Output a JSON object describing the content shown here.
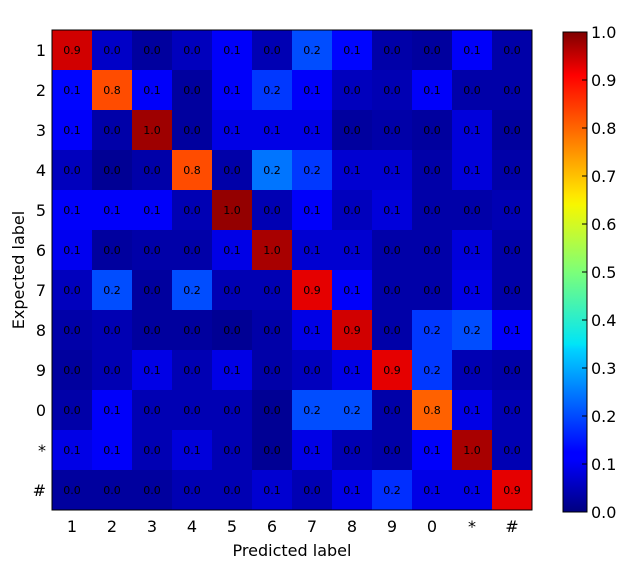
{
  "chart_data": {
    "type": "heatmap",
    "title": "",
    "xlabel": "Predicted label",
    "ylabel": "Expected label",
    "x_categories": [
      "1",
      "2",
      "3",
      "4",
      "5",
      "6",
      "7",
      "8",
      "9",
      "0",
      "*",
      "#"
    ],
    "y_categories": [
      "1",
      "2",
      "3",
      "4",
      "5",
      "6",
      "7",
      "8",
      "9",
      "0",
      "*",
      "#"
    ],
    "colormap": "jet",
    "vmin": 0.0,
    "vmax": 1.0,
    "colorbar_ticks": [
      "0.0",
      "0.1",
      "0.2",
      "0.3",
      "0.4",
      "0.5",
      "0.6",
      "0.7",
      "0.8",
      "0.9",
      "1.0"
    ],
    "values": [
      [
        0.9,
        0.0,
        0.0,
        0.0,
        0.1,
        0.0,
        0.2,
        0.1,
        0.0,
        0.0,
        0.1,
        0.0
      ],
      [
        0.1,
        0.8,
        0.1,
        0.0,
        0.1,
        0.2,
        0.1,
        0.0,
        0.0,
        0.1,
        0.0,
        0.0
      ],
      [
        0.1,
        0.0,
        1.0,
        0.0,
        0.1,
        0.1,
        0.1,
        0.0,
        0.0,
        0.0,
        0.1,
        0.0
      ],
      [
        0.0,
        0.0,
        0.0,
        0.8,
        0.0,
        0.2,
        0.2,
        0.1,
        0.1,
        0.0,
        0.1,
        0.0
      ],
      [
        0.1,
        0.1,
        0.1,
        0.0,
        1.0,
        0.0,
        0.1,
        0.0,
        0.1,
        0.0,
        0.0,
        0.0
      ],
      [
        0.1,
        0.0,
        0.0,
        0.0,
        0.1,
        1.0,
        0.1,
        0.1,
        0.0,
        0.0,
        0.1,
        0.0
      ],
      [
        0.0,
        0.2,
        0.0,
        0.2,
        0.0,
        0.0,
        0.9,
        0.1,
        0.0,
        0.0,
        0.1,
        0.0
      ],
      [
        0.0,
        0.0,
        0.0,
        0.0,
        0.0,
        0.0,
        0.1,
        0.9,
        0.0,
        0.2,
        0.2,
        0.1
      ],
      [
        0.0,
        0.0,
        0.1,
        0.0,
        0.1,
        0.0,
        0.0,
        0.1,
        0.9,
        0.2,
        0.0,
        0.0
      ],
      [
        0.0,
        0.1,
        0.0,
        0.0,
        0.0,
        0.0,
        0.2,
        0.2,
        0.0,
        0.8,
        0.1,
        0.0
      ],
      [
        0.1,
        0.1,
        0.0,
        0.1,
        0.0,
        0.0,
        0.1,
        0.0,
        0.0,
        0.1,
        1.0,
        0.0
      ],
      [
        0.0,
        0.0,
        0.0,
        0.0,
        0.0,
        0.1,
        0.0,
        0.1,
        0.2,
        0.1,
        0.1,
        0.9
      ]
    ],
    "shading": [
      [
        0.92,
        0.07,
        0.03,
        0.06,
        0.12,
        0.05,
        0.2,
        0.13,
        0.04,
        0.03,
        0.12,
        0.04
      ],
      [
        0.13,
        0.8,
        0.12,
        0.03,
        0.12,
        0.18,
        0.12,
        0.06,
        0.05,
        0.12,
        0.04,
        0.04
      ],
      [
        0.12,
        0.04,
        0.97,
        0.03,
        0.1,
        0.1,
        0.1,
        0.03,
        0.04,
        0.03,
        0.09,
        0.03
      ],
      [
        0.06,
        0.02,
        0.04,
        0.8,
        0.04,
        0.24,
        0.18,
        0.08,
        0.08,
        0.04,
        0.09,
        0.04
      ],
      [
        0.12,
        0.12,
        0.12,
        0.05,
        0.98,
        0.05,
        0.12,
        0.06,
        0.09,
        0.04,
        0.04,
        0.05
      ],
      [
        0.11,
        0.03,
        0.04,
        0.04,
        0.1,
        0.96,
        0.08,
        0.08,
        0.04,
        0.04,
        0.09,
        0.04
      ],
      [
        0.06,
        0.2,
        0.03,
        0.2,
        0.05,
        0.05,
        0.9,
        0.12,
        0.04,
        0.04,
        0.1,
        0.04
      ],
      [
        0.04,
        0.05,
        0.03,
        0.03,
        0.02,
        0.04,
        0.1,
        0.92,
        0.04,
        0.18,
        0.2,
        0.12
      ],
      [
        0.03,
        0.05,
        0.1,
        0.05,
        0.1,
        0.04,
        0.06,
        0.1,
        0.9,
        0.18,
        0.05,
        0.04
      ],
      [
        0.04,
        0.12,
        0.05,
        0.05,
        0.05,
        0.02,
        0.2,
        0.2,
        0.04,
        0.78,
        0.1,
        0.05
      ],
      [
        0.1,
        0.12,
        0.05,
        0.09,
        0.05,
        0.02,
        0.1,
        0.05,
        0.04,
        0.12,
        0.96,
        0.05
      ],
      [
        0.03,
        0.03,
        0.03,
        0.05,
        0.05,
        0.08,
        0.05,
        0.1,
        0.17,
        0.1,
        0.1,
        0.9
      ]
    ]
  }
}
